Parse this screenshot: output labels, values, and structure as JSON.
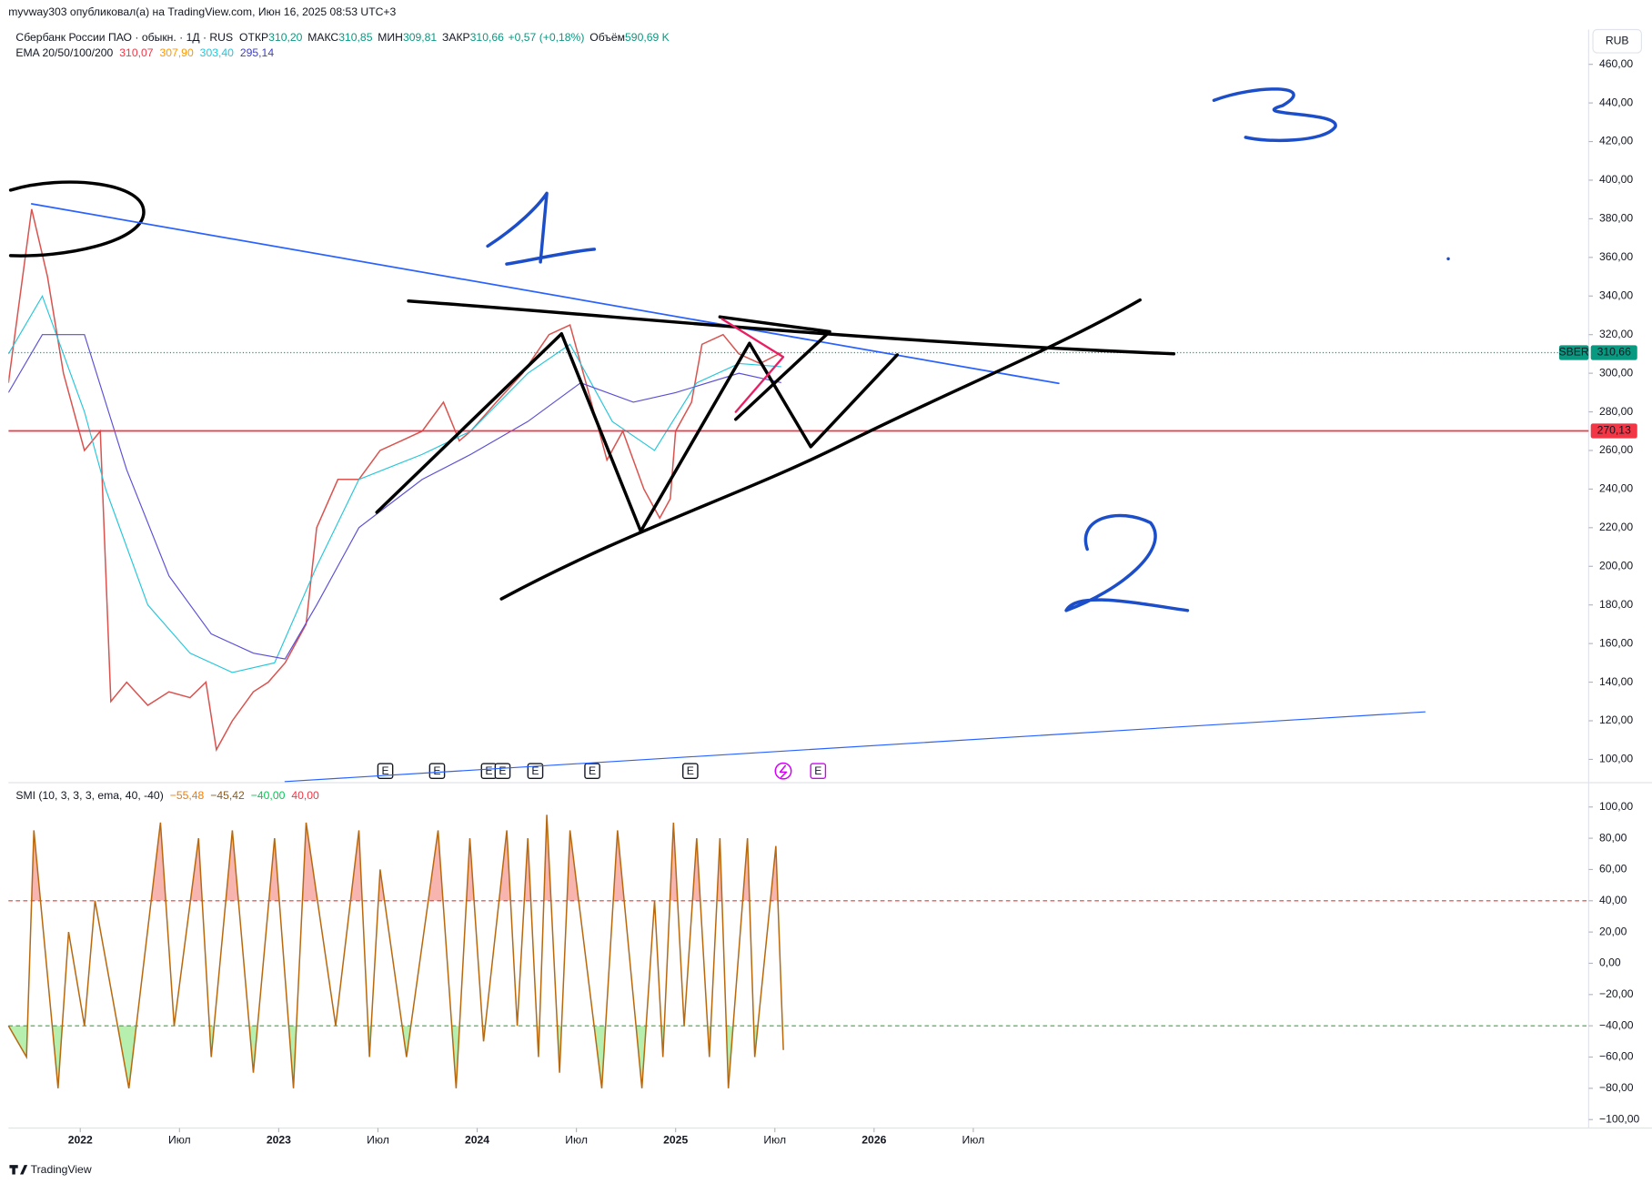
{
  "header": {
    "published": "myvway303 опубликовал(а) на TradingView.com, Июн 16, 2025 08:53 UTC+3",
    "currency": "RUB",
    "logo": "TradingView"
  },
  "chart_data": [
    {
      "type": "line",
      "title": "Сбербанк России ПАО · обыкн. · 1Д · RUS",
      "stats": [
        {
          "label": "ОТКР",
          "text": "310,20"
        },
        {
          "label": "МАКС",
          "text": "310,85"
        },
        {
          "label": "МИН",
          "text": "309,81"
        },
        {
          "label": "ЗАКР",
          "text": "310,66"
        }
      ],
      "change": "+0,57 (+0,18%)",
      "volume_label": "Объём",
      "volume": "590,69 K",
      "indicator": "EMA 20/50/100/200",
      "indicator_values": [
        "310,07",
        "307,90",
        "303,40",
        "295,14"
      ],
      "indicator_colors": [
        "#f23645",
        "#ff9800",
        "#26c6da",
        "#3f3fbf"
      ],
      "xlim": [
        2021.638,
        2029.601
      ],
      "ylim": [
        88.5,
        478
      ],
      "yticks": [
        {
          "value": 100,
          "label": "100,00"
        },
        {
          "value": 120,
          "label": "120,00"
        },
        {
          "value": 140,
          "label": "140,00"
        },
        {
          "value": 160,
          "label": "160,00"
        },
        {
          "value": 180,
          "label": "180,00"
        },
        {
          "value": 200,
          "label": "200,00"
        },
        {
          "value": 220,
          "label": "220,00"
        },
        {
          "value": 240,
          "label": "240,00"
        },
        {
          "value": 260,
          "label": "260,00"
        },
        {
          "value": 280,
          "label": "280,00"
        },
        {
          "value": 300,
          "label": "300,00"
        },
        {
          "value": 320,
          "label": "320,00"
        },
        {
          "value": 340,
          "label": "340,00"
        },
        {
          "value": 360,
          "label": "360,00"
        },
        {
          "value": 380,
          "label": "380,00"
        },
        {
          "value": 400,
          "label": "400,00"
        },
        {
          "value": 420,
          "label": "420,00"
        },
        {
          "value": 440,
          "label": "440,00"
        },
        {
          "value": 460,
          "label": "460,00"
        }
      ],
      "series": [
        {
          "color": "#d9534f",
          "x": [
            2021.638,
            2021.755,
            2021.835,
            2021.915,
            2022.021,
            2022.101,
            2022.154,
            2022.234,
            2022.34,
            2022.447,
            2022.553,
            2022.633,
            2022.686,
            2022.766,
            2022.872,
            2022.947,
            2023.032,
            2023.138,
            2023.191,
            2023.298,
            2023.404,
            2023.511,
            2023.617,
            2023.723,
            2023.83,
            2023.91,
            2023.968,
            2024.096,
            2024.229,
            2024.362,
            2024.468,
            2024.548,
            2024.654,
            2024.734,
            2024.84,
            2024.92,
            2024.973,
            2025.0,
            2025.08,
            2025.133,
            2025.239,
            2025.319,
            2025.426,
            2025.532
          ],
          "values": [
            295,
            385,
            350,
            300,
            260,
            270,
            130,
            140,
            128,
            135,
            132,
            140,
            105,
            120,
            135,
            140,
            150,
            170,
            220,
            245,
            245,
            260,
            265,
            270,
            285,
            265,
            270,
            285,
            300,
            320,
            325,
            295,
            255,
            270,
            240,
            225,
            235,
            270,
            285,
            315,
            320,
            310,
            305,
            310.66
          ]
        },
        {
          "color": "#26c6da",
          "x": [
            2021.638,
            2021.809,
            2022.021,
            2022.128,
            2022.34,
            2022.553,
            2022.766,
            2022.979,
            2023.191,
            2023.404,
            2023.723,
            2023.968,
            2024.255,
            2024.468,
            2024.681,
            2024.894,
            2025.106,
            2025.319,
            2025.532
          ],
          "values": [
            310,
            340,
            280,
            240,
            180,
            155,
            145,
            150,
            200,
            245,
            258,
            270,
            300,
            315,
            275,
            260,
            295,
            305,
            303.4
          ]
        },
        {
          "color": "#5b4fd6",
          "x": [
            2021.638,
            2021.809,
            2022.021,
            2022.234,
            2022.447,
            2022.66,
            2022.872,
            2023.032,
            2023.191,
            2023.404,
            2023.723,
            2023.968,
            2024.255,
            2024.521,
            2024.787,
            2025.0,
            2025.319,
            2025.532
          ],
          "values": [
            290,
            320,
            320,
            250,
            195,
            165,
            155,
            152,
            180,
            220,
            245,
            258,
            275,
            295,
            285,
            290,
            300,
            295.14
          ]
        }
      ],
      "hlines": [
        {
          "value": 270.13,
          "label": "270,13",
          "color": "#f23645"
        }
      ],
      "last": {
        "symbol": "SBER",
        "value": 310.66,
        "label": "310,66",
        "color": "#089981"
      },
      "events": [
        {
          "x": 2023.537,
          "label": "E",
          "color": "#131722"
        },
        {
          "x": 2023.798,
          "label": "E",
          "color": "#131722"
        },
        {
          "x": 2024.059,
          "label": "E",
          "color": "#131722"
        },
        {
          "x": 2024.128,
          "label": "E",
          "color": "#131722"
        },
        {
          "x": 2024.293,
          "label": "E",
          "color": "#131722"
        },
        {
          "x": 2024.58,
          "label": "E",
          "color": "#131722"
        },
        {
          "x": 2025.074,
          "label": "E",
          "color": "#131722"
        },
        {
          "x": 2025.718,
          "label": "E",
          "color": "#d500f9"
        }
      ]
    },
    {
      "type": "line",
      "title": "SMI (10, 3, 3, 3, ema, 40, -40)",
      "legend_values": [
        "−55,48",
        "−45,42",
        "−40,00",
        "40,00"
      ],
      "legend_colors": [
        "#f57c00",
        "#8d5a1c",
        "#00c853",
        "#f23645"
      ],
      "xlim": [
        2021.638,
        2029.601
      ],
      "ylim": [
        -105.4,
        114.9
      ],
      "yticks": [
        {
          "value": 100,
          "label": "100,00"
        },
        {
          "value": 80,
          "label": "80,00"
        },
        {
          "value": 60,
          "label": "60,00"
        },
        {
          "value": 40,
          "label": "40,00"
        },
        {
          "value": 20,
          "label": "20,00"
        },
        {
          "value": 0,
          "label": "0,00"
        },
        {
          "value": -20,
          "label": "−20,00"
        },
        {
          "value": -40,
          "label": "−40,00"
        },
        {
          "value": -60,
          "label": "−60,00"
        },
        {
          "value": -80,
          "label": "−80,00"
        },
        {
          "value": -100,
          "label": "−100,00"
        }
      ],
      "xticks": [
        {
          "value": 2022,
          "label": "2022"
        },
        {
          "value": 2022.5,
          "label": "Июл"
        },
        {
          "value": 2023,
          "label": "2023"
        },
        {
          "value": 2023.5,
          "label": "Июл"
        },
        {
          "value": 2024,
          "label": "2024"
        },
        {
          "value": 2024.5,
          "label": "Июл"
        },
        {
          "value": 2025,
          "label": "2025"
        },
        {
          "value": 2025.5,
          "label": "Июл"
        },
        {
          "value": 2026,
          "label": "2026"
        },
        {
          "value": 2026.5,
          "label": "Июл"
        }
      ],
      "series": [
        {
          "color": "#b8690f",
          "x": [
            2021.638,
            2021.729,
            2021.766,
            2021.888,
            2021.941,
            2022.021,
            2022.074,
            2022.245,
            2022.404,
            2022.473,
            2022.596,
            2022.66,
            2022.766,
            2022.872,
            2022.979,
            2023.074,
            2023.138,
            2023.287,
            2023.404,
            2023.457,
            2023.511,
            2023.644,
            2023.803,
            2023.894,
            2023.963,
            2024.032,
            2024.149,
            2024.202,
            2024.255,
            2024.309,
            2024.351,
            2024.415,
            2024.468,
            2024.628,
            2024.707,
            2024.83,
            2024.894,
            2024.936,
            2024.989,
            2025.043,
            2025.106,
            2025.17,
            2025.223,
            2025.266,
            2025.362,
            2025.399,
            2025.505,
            2025.543
          ],
          "values": [
            -40,
            -60,
            85,
            -80,
            20,
            -40,
            40,
            -80,
            90,
            -40,
            80,
            -60,
            85,
            -70,
            80,
            -80,
            90,
            -40,
            85,
            -60,
            60,
            -60,
            85,
            -80,
            80,
            -50,
            85,
            -40,
            80,
            -60,
            95,
            -70,
            85,
            -80,
            85,
            -80,
            40,
            -60,
            90,
            -40,
            80,
            -60,
            80,
            -80,
            80,
            -60,
            75,
            -55.48
          ]
        }
      ],
      "levels": [
        {
          "value": 40,
          "color": "#e53935",
          "fill": "#f8b4ae"
        },
        {
          "value": -40,
          "color": "#43a047",
          "fill": "#b6efae"
        }
      ]
    }
  ]
}
